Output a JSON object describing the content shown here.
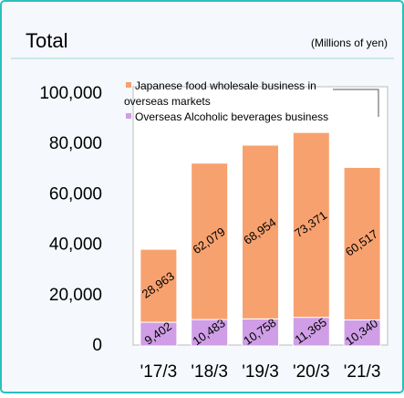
{
  "chart_data": {
    "type": "stacked_bar",
    "title": "Total",
    "subtitle": "(Millions of yen)",
    "categories": [
      "'17/3",
      "'18/3",
      "'19/3",
      "'20/3",
      "'21/3"
    ],
    "series": [
      {
        "name": "Overseas Alcoholic beverages business",
        "color": "#cf9ee6",
        "values": [
          9402,
          10483,
          10758,
          11365,
          10340
        ],
        "value_labels": [
          "9,402",
          "10,483",
          "10,758",
          "11,365",
          "10,340"
        ]
      },
      {
        "name": "Japanese food wholesale business in overseas markets",
        "color": "#f7a16f",
        "values": [
          28963,
          62079,
          68954,
          73371,
          60517
        ],
        "value_labels": [
          "28,963",
          "62,079",
          "68,954",
          "73,371",
          "60,517"
        ]
      }
    ],
    "ylim": [
      0,
      100000
    ],
    "yticks": [
      0,
      {
        "value": 20000,
        "label": "20,000"
      },
      {
        "value": 40000,
        "label": "40,000"
      },
      {
        "value": 60000,
        "label": "60,000"
      },
      {
        "value": 80000,
        "label": "80,000"
      },
      {
        "value": 100000,
        "label": "100,000"
      }
    ],
    "legend": "top-left"
  }
}
